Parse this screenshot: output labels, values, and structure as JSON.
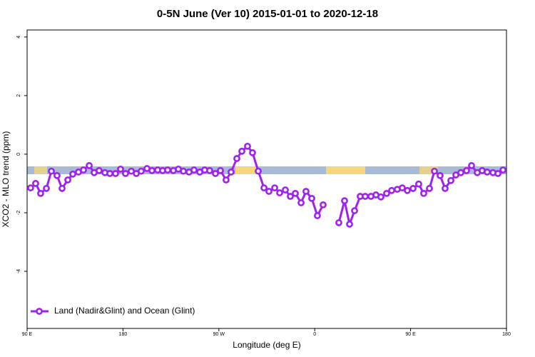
{
  "chart_data": {
    "type": "line",
    "title": "0-5N June (Ver 10)   2015-01-01 to 2020-12-18",
    "x_label": "Longitude (deg E)",
    "y_label": "XCO2 - MLO trend (ppm)",
    "x": [
      93.3,
      98.0,
      102.7,
      108.1,
      112.8,
      118.1,
      122.8,
      128.2,
      132.9,
      138.2,
      142.9,
      148.3,
      153.0,
      157.6,
      163.0,
      167.7,
      173.0,
      177.7,
      182.4,
      187.8,
      192.5,
      197.1,
      202.5,
      207.2,
      212.5,
      217.2,
      221.9,
      227.3,
      232.0,
      236.7,
      242.0,
      246.7,
      252.1,
      256.7,
      261.4,
      266.8,
      271.5,
      276.8,
      281.5,
      286.9,
      291.6,
      296.9,
      301.6,
      307.0,
      312.4,
      317.0,
      322.4,
      327.1,
      332.4,
      337.1,
      341.8,
      347.2,
      351.8,
      357.2,
      362.5,
      367.9,
      375.3,
      382.6,
      388.0,
      392.7,
      397.4,
      402.7,
      407.4,
      412.8,
      417.5,
      422.1,
      427.5,
      432.2,
      437.5,
      442.2,
      446.9,
      452.3,
      457.6,
      462.3,
      467.7,
      472.4,
      477.7,
      482.4,
      487.8,
      492.5,
      497.2,
      502.5,
      507.2,
      512.6,
      517.2,
      521.9,
      527.3,
      532.0,
      536.7
    ],
    "series": [
      {
        "name": "Land (Nadir&Glint) and Ocean (Glint)",
        "color": "#a020f0",
        "values": [
          -1.15,
          -1.0,
          -1.34,
          -1.17,
          -0.58,
          -0.73,
          -1.17,
          -0.88,
          -0.68,
          -0.61,
          -0.54,
          -0.39,
          -0.63,
          -0.56,
          -0.63,
          -0.66,
          -0.66,
          -0.51,
          -0.66,
          -0.58,
          -0.66,
          -0.58,
          -0.49,
          -0.56,
          -0.54,
          -0.56,
          -0.54,
          -0.56,
          -0.51,
          -0.58,
          -0.61,
          -0.54,
          -0.61,
          -0.54,
          -0.56,
          -0.66,
          -0.56,
          -0.88,
          -0.61,
          -0.15,
          0.1,
          0.27,
          0.05,
          -0.58,
          -1.15,
          -1.27,
          -1.15,
          -1.32,
          -1.22,
          -1.44,
          -1.34,
          -1.66,
          -1.27,
          -1.51,
          -2.1,
          -1.73,
          null,
          -2.34,
          -1.59,
          -2.39,
          -1.93,
          -1.44,
          -1.44,
          -1.44,
          -1.39,
          -1.46,
          -1.34,
          -1.24,
          -1.2,
          -1.15,
          -1.24,
          -1.17,
          -1.02,
          -1.34,
          -1.17,
          -0.58,
          -0.73,
          -1.17,
          -0.9,
          -0.71,
          -0.63,
          -0.56,
          -0.39,
          -0.63,
          -0.56,
          -0.61,
          -0.63,
          -0.66,
          -0.54
        ]
      }
    ],
    "xlim": [
      90,
      540
    ],
    "xticks": [
      {
        "value": 90,
        "label": "90 E"
      },
      180,
      {
        "value": 270,
        "label": "90 W"
      },
      {
        "value": 360,
        "label": "0"
      },
      {
        "value": 450,
        "label": "90 E"
      },
      {
        "value": 540,
        "label": "180"
      }
    ],
    "ylim": [
      -5.95,
      4.24
    ],
    "yticks": [
      -4,
      -2,
      0,
      2,
      4
    ],
    "legend": "bottom-left"
  }
}
